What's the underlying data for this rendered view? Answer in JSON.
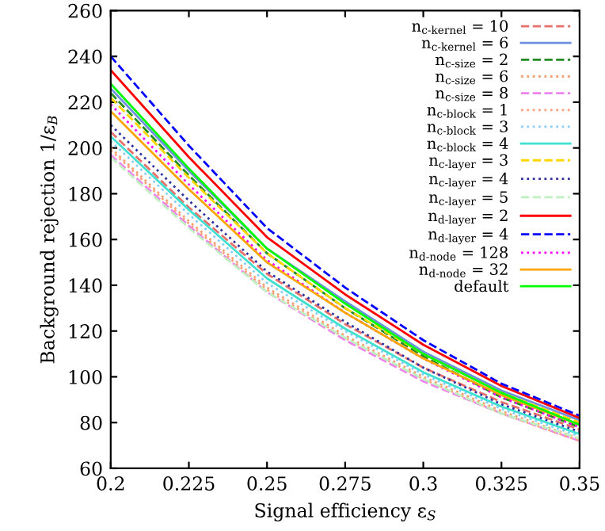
{
  "chart_data": {
    "type": "line",
    "xlabel": "Signal efficiency ε$_{S}$",
    "ylabel": "Background rejection 1/ε$_{B}$",
    "x": [
      0.2,
      0.225,
      0.25,
      0.275,
      0.3,
      0.325,
      0.35
    ],
    "xlim": [
      0.2,
      0.35
    ],
    "xticks": [
      0.2,
      0.225,
      0.25,
      0.275,
      0.3,
      0.325,
      0.35
    ],
    "ylim": [
      60,
      260
    ],
    "yticks": [
      60,
      80,
      100,
      120,
      140,
      160,
      180,
      200,
      220,
      240,
      260
    ],
    "grid": false,
    "legend": "top right",
    "marker": "none",
    "series": [
      {
        "name": "n$_{c-kernel}$ = 10",
        "color": "#e8706a",
        "line_style": "dashed",
        "values": [
          207,
          174,
          145,
          123,
          104,
          89,
          77
        ]
      },
      {
        "name": "n$_{c-kernel}$ = 6",
        "color": "#6f8fdf",
        "line_style": "solid",
        "values": [
          226,
          190,
          156,
          133,
          111,
          94,
          81
        ]
      },
      {
        "name": "n$_{c-size}$ = 2",
        "color": "#228b22",
        "line_style": "dashed",
        "values": [
          224,
          188,
          154,
          130,
          109,
          91,
          78
        ]
      },
      {
        "name": "n$_{c-size}$ = 6",
        "color": "#f4a070",
        "line_style": "dotted",
        "values": [
          200,
          168,
          139,
          118,
          100,
          85,
          73
        ]
      },
      {
        "name": "n$_{c-size}$ = 8",
        "color": "#ee82ee",
        "line_style": "dashed",
        "values": [
          197,
          166,
          137,
          116,
          98,
          84,
          72
        ]
      },
      {
        "name": "n$_{c-block}$ = 1",
        "color": "#ffa07a",
        "line_style": "dotted",
        "values": [
          199,
          167,
          138,
          117,
          99,
          84,
          72
        ]
      },
      {
        "name": "n$_{c-block}$ = 3",
        "color": "#87cefa",
        "line_style": "dotted",
        "values": [
          203,
          171,
          141,
          120,
          101,
          86,
          74
        ]
      },
      {
        "name": "n$_{c-block}$ = 4",
        "color": "#40e0d0",
        "line_style": "solid",
        "values": [
          205,
          173,
          143,
          121,
          102,
          87,
          75
        ]
      },
      {
        "name": "n$_{c-layer}$ = 3",
        "color": "#ffd700",
        "line_style": "dashed",
        "values": [
          222,
          187,
          154,
          130,
          110,
          93,
          80
        ]
      },
      {
        "name": "n$_{c-layer}$ = 4",
        "color": "#3030a0",
        "line_style": "dotted",
        "values": [
          210,
          177,
          146,
          124,
          104,
          88,
          76
        ]
      },
      {
        "name": "n$_{c-layer}$ = 5",
        "color": "#c0f0c0",
        "line_style": "dashed",
        "values": [
          196,
          165,
          137,
          117,
          99,
          84,
          73
        ]
      },
      {
        "name": "n$_{d-layer}$ = 2",
        "color": "#ff0000",
        "line_style": "solid",
        "values": [
          234,
          196,
          161,
          136,
          114,
          96,
          82
        ]
      },
      {
        "name": "n$_{d-layer}$ = 4",
        "color": "#0000ff",
        "line_style": "dashed",
        "values": [
          240,
          201,
          165,
          139,
          116,
          97,
          83
        ]
      },
      {
        "name": "n$_{d-node}$ = 128",
        "color": "#ff00ff",
        "line_style": "dotted",
        "values": [
          219,
          184,
          151,
          128,
          108,
          91,
          78
        ]
      },
      {
        "name": "n$_{d-node}$ = 32",
        "color": "#ffa500",
        "line_style": "solid",
        "values": [
          216,
          182,
          150,
          128,
          108,
          92,
          79
        ]
      },
      {
        "name": "default",
        "color": "#00ff00",
        "line_style": "solid",
        "values": [
          228,
          191,
          156,
          132,
          110,
          93,
          79
        ]
      }
    ]
  }
}
